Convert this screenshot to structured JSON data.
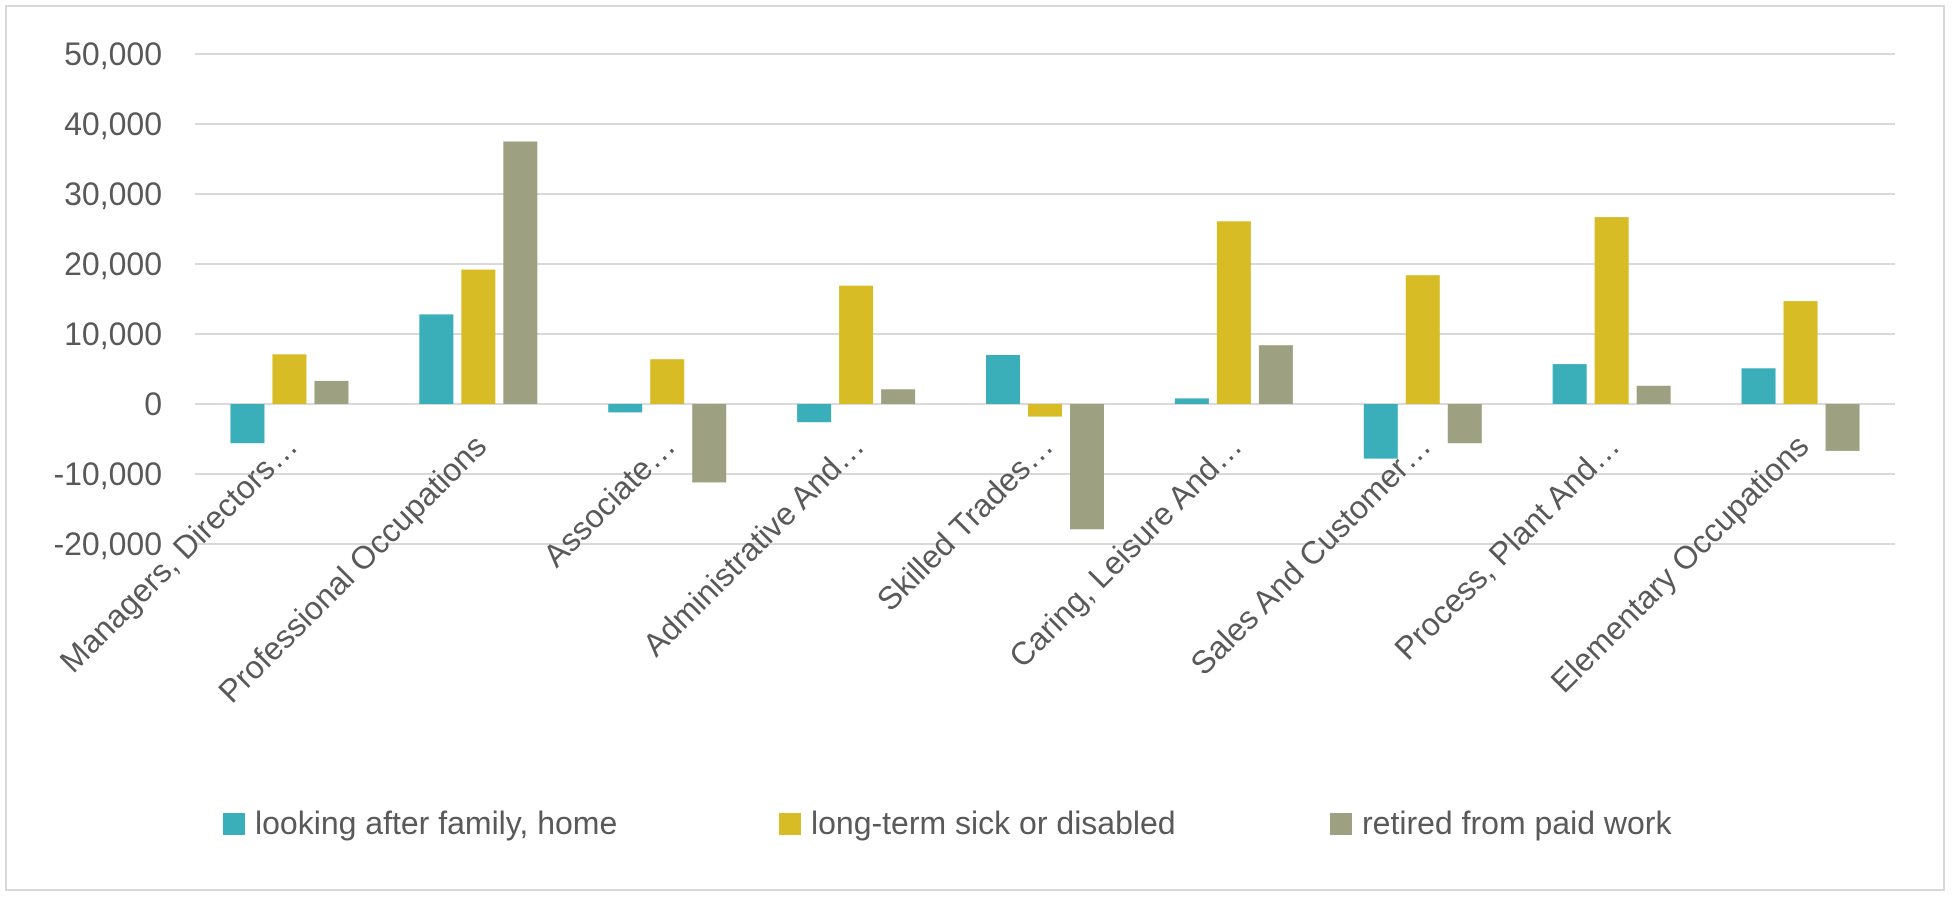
{
  "chart_data": {
    "type": "bar",
    "title": "",
    "xlabel": "",
    "ylabel": "",
    "ylim": [
      -20000,
      50000
    ],
    "yticks": [
      50000,
      40000,
      30000,
      20000,
      10000,
      0,
      -10000,
      -20000
    ],
    "ytick_labels": [
      "50,000",
      "40,000",
      "30,000",
      "20,000",
      "10,000",
      "0",
      "-10,000",
      "-20,000"
    ],
    "grid": true,
    "legend_position": "bottom",
    "categories": [
      "Managers, Directors…",
      "Professional Occupations",
      "Associate…",
      "Administrative And…",
      "Skilled Trades…",
      "Caring, Leisure And…",
      "Sales And Customer…",
      "Process, Plant And…",
      "Elementary Occupations"
    ],
    "series": [
      {
        "name": "looking after family, home",
        "color": "#3aafb9",
        "values": [
          -5600,
          12800,
          -1200,
          -2600,
          7000,
          800,
          -7800,
          5700,
          5100
        ]
      },
      {
        "name": "long-term sick or disabled",
        "color": "#d8bc26",
        "values": [
          7100,
          19200,
          6400,
          16900,
          -1800,
          26100,
          18400,
          26700,
          14700
        ]
      },
      {
        "name": "retired from paid work",
        "color": "#9da182",
        "values": [
          3300,
          37500,
          -11200,
          2100,
          -17900,
          8400,
          -5600,
          2600,
          -6700
        ]
      }
    ]
  }
}
